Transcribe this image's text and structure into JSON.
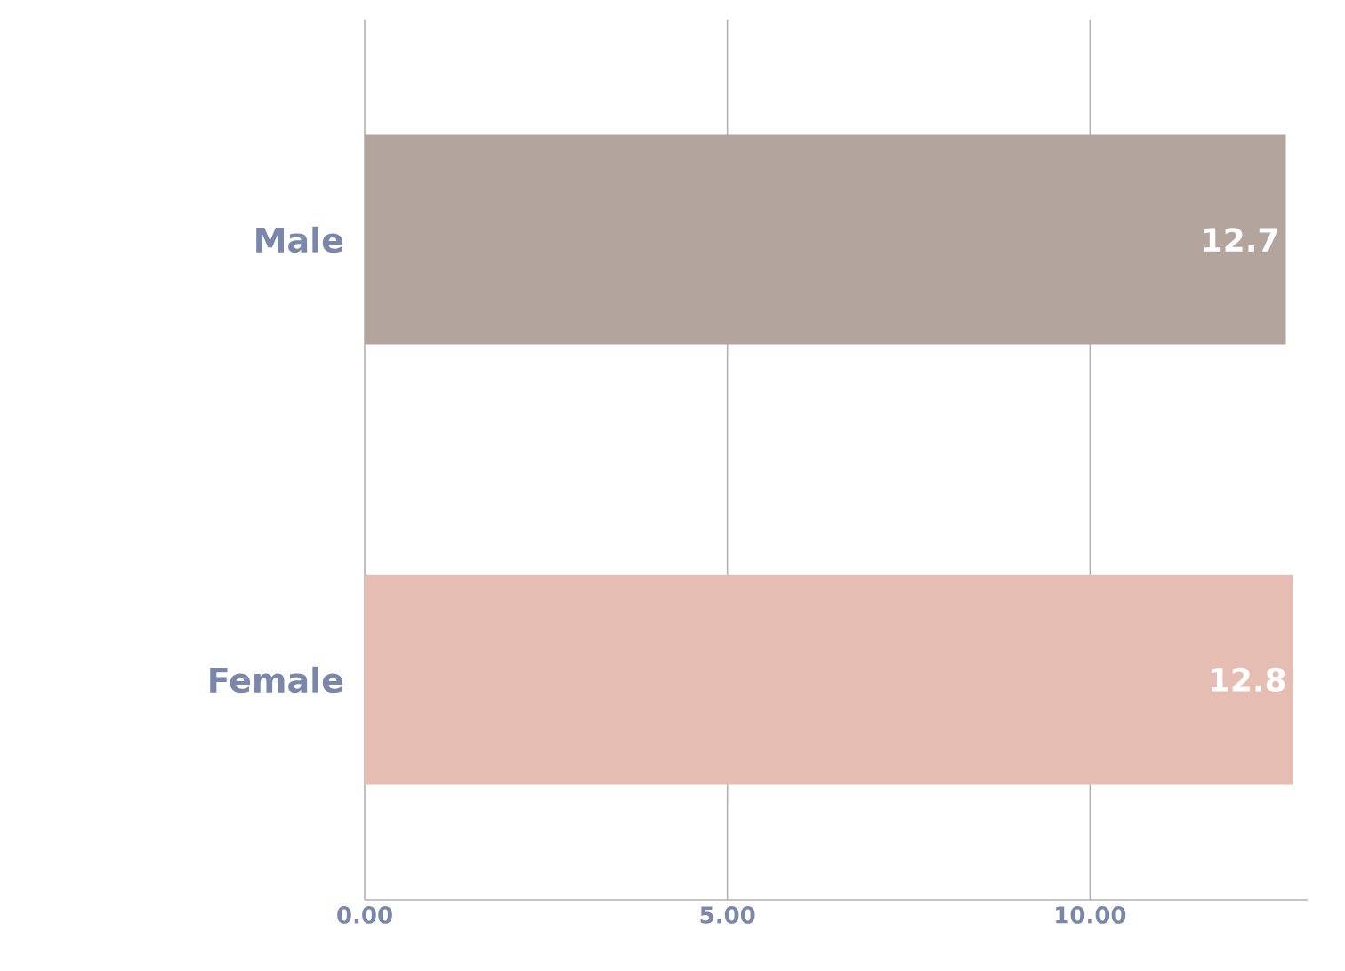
{
  "chart_data": {
    "type": "bar",
    "orientation": "horizontal",
    "categories": [
      "Male",
      "Female"
    ],
    "values": [
      12.7,
      12.8
    ],
    "colors": [
      "#b3a59e",
      "#e5bdb3"
    ],
    "xlim": [
      0,
      13
    ],
    "xticks": [
      {
        "value": 0,
        "label": "0.00"
      },
      {
        "value": 5,
        "label": "5.00"
      },
      {
        "value": 10,
        "label": "10.00"
      }
    ],
    "grid": "x",
    "data_labels": true
  }
}
